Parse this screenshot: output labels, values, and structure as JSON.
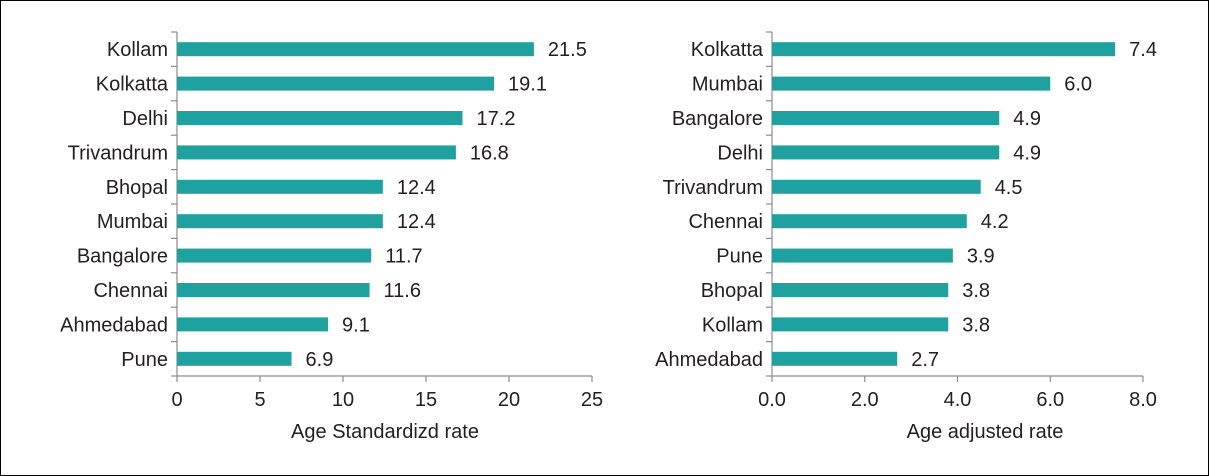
{
  "chart_data": [
    {
      "type": "bar",
      "orientation": "horizontal",
      "categories": [
        "Kollam",
        "Kolkatta",
        "Delhi",
        "Trivandrum",
        "Bhopal",
        "Mumbai",
        "Bangalore",
        "Chennai",
        "Ahmedabad",
        "Pune"
      ],
      "values": [
        21.5,
        19.1,
        17.2,
        16.8,
        12.4,
        12.4,
        11.7,
        11.6,
        9.1,
        6.9
      ],
      "value_labels": [
        "21.5",
        "19.1",
        "17.2",
        "16.8",
        "12.4",
        "12.4",
        "11.7",
        "11.6",
        "9.1",
        "6.9"
      ],
      "xlabel": "Age Standardizd rate",
      "xlim": [
        0,
        25
      ],
      "xticks": [
        0,
        5,
        10,
        15,
        20,
        25
      ],
      "xtick_labels": [
        "0",
        "5",
        "10",
        "15",
        "20",
        "25"
      ],
      "color": "#1fa19f",
      "grid": false
    },
    {
      "type": "bar",
      "orientation": "horizontal",
      "categories": [
        "Kolkatta",
        "Mumbai",
        "Bangalore",
        "Delhi",
        "Trivandrum",
        "Chennai",
        "Pune",
        "Bhopal",
        "Kollam",
        "Ahmedabad"
      ],
      "values": [
        7.4,
        6.0,
        4.9,
        4.9,
        4.5,
        4.2,
        3.9,
        3.8,
        3.8,
        2.7
      ],
      "value_labels": [
        "7.4",
        "6.0",
        "4.9",
        "4.9",
        "4.5",
        "4.2",
        "3.9",
        "3.8",
        "3.8",
        "2.7"
      ],
      "xlabel": "Age adjusted rate",
      "xlim": [
        0,
        8
      ],
      "xticks": [
        0,
        2,
        4,
        6,
        8
      ],
      "xtick_labels": [
        "0.0",
        "2.0",
        "4.0",
        "6.0",
        "8.0"
      ],
      "color": "#1fa19f",
      "grid": false
    }
  ]
}
